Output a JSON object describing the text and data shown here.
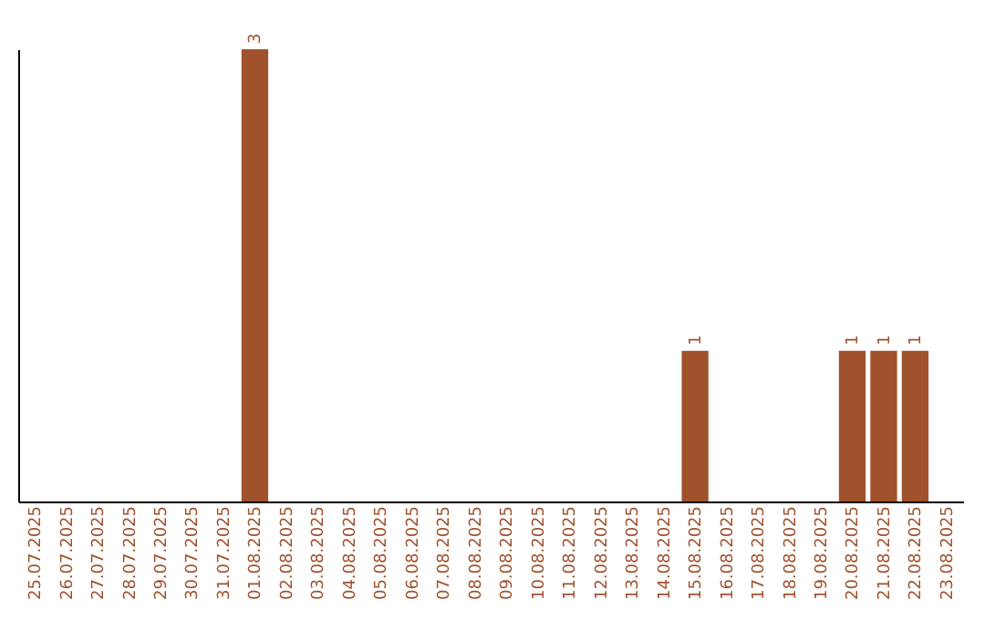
{
  "chart_data": {
    "type": "bar",
    "categories": [
      "25.07.2025",
      "26.07.2025",
      "27.07.2025",
      "28.07.2025",
      "29.07.2025",
      "30.07.2025",
      "31.07.2025",
      "01.08.2025",
      "02.08.2025",
      "03.08.2025",
      "04.08.2025",
      "05.08.2025",
      "06.08.2025",
      "07.08.2025",
      "08.08.2025",
      "09.08.2025",
      "10.08.2025",
      "11.08.2025",
      "12.08.2025",
      "13.08.2025",
      "14.08.2025",
      "15.08.2025",
      "16.08.2025",
      "17.08.2025",
      "18.08.2025",
      "19.08.2025",
      "20.08.2025",
      "21.08.2025",
      "22.08.2025",
      "23.08.2025"
    ],
    "values": [
      0,
      0,
      0,
      0,
      0,
      0,
      0,
      3,
      0,
      0,
      0,
      0,
      0,
      0,
      0,
      0,
      0,
      0,
      0,
      0,
      0,
      1,
      0,
      0,
      0,
      0,
      1,
      1,
      1,
      0
    ],
    "value_labels": [
      null,
      null,
      null,
      null,
      null,
      null,
      null,
      "3",
      null,
      null,
      null,
      null,
      null,
      null,
      null,
      null,
      null,
      null,
      null,
      null,
      null,
      "1",
      null,
      null,
      null,
      null,
      "1",
      "1",
      "1",
      null
    ],
    "color": "#a0522d",
    "grid": false,
    "tick_labels": "x"
  }
}
